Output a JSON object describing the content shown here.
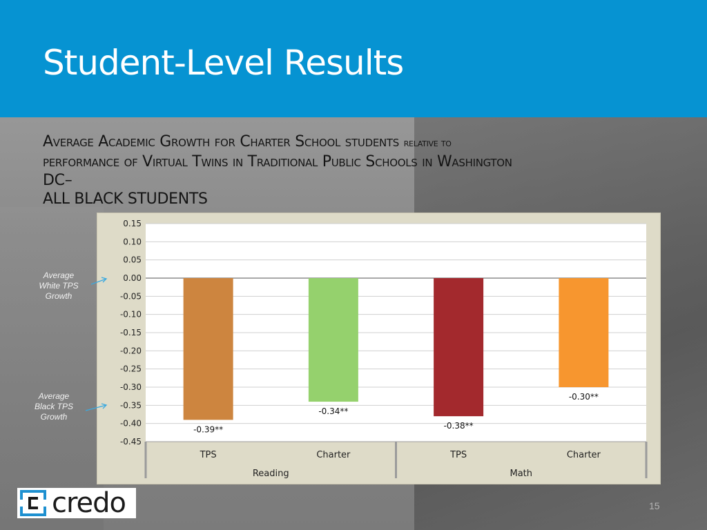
{
  "slide": {
    "title": "Student-Level Results",
    "subtitle_line1_main": "Average Academic Growth for Charter School students",
    "subtitle_line1_small": "relative to",
    "subtitle_line2": "performance of Virtual Twins in Traditional Public Schools in Washington",
    "subtitle_line3": "DC–",
    "subtitle_line4": "ALL BLACK STUDENTS",
    "page_number": "15",
    "logo_text": "credo"
  },
  "annotations": {
    "white_line1": "Average",
    "white_line2": "White TPS",
    "white_line3": "Growth",
    "black_line1": "Average",
    "black_line2": "Black TPS",
    "black_line3": "Growth"
  },
  "colors": {
    "header_blue": "#0693d2",
    "arrow_blue": "#3aa9e0",
    "panel_bg": "#dedbc8"
  },
  "chart_data": {
    "type": "bar",
    "title": "",
    "xlabel": "",
    "ylabel": "",
    "ylim": [
      -0.45,
      0.15
    ],
    "yticks": [
      "0.15",
      "0.10",
      "0.05",
      "0.00",
      "-0.05",
      "-0.10",
      "-0.15",
      "-0.20",
      "-0.25",
      "-0.30",
      "-0.35",
      "-0.40",
      "-0.45"
    ],
    "grid": true,
    "categories": [
      "TPS",
      "Charter",
      "TPS",
      "Charter"
    ],
    "groups": [
      "Reading",
      "Math"
    ],
    "values": [
      -0.39,
      -0.34,
      -0.38,
      -0.3
    ],
    "labels": [
      "-0.39**",
      "-0.34**",
      "-0.38**",
      "-0.30**"
    ],
    "bar_colors": [
      "#cd853f",
      "#95d16d",
      "#a3292d",
      "#f7962f"
    ]
  }
}
